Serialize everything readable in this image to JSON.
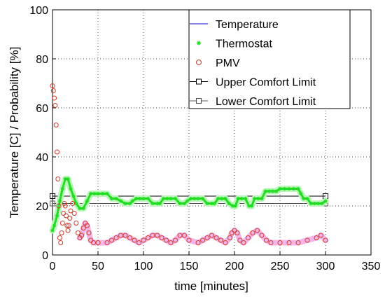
{
  "chart_data": {
    "type": "line",
    "xlabel": "time [minutes]",
    "ylabel": "Temperature [C]  /  Probability [%]",
    "xlim": [
      0,
      350
    ],
    "ylim": [
      0,
      100
    ],
    "xticks": [
      0,
      50,
      100,
      150,
      200,
      250,
      300,
      350
    ],
    "yticks": [
      0,
      20,
      40,
      60,
      80,
      100
    ],
    "grid": true,
    "legend_position": "top-right",
    "colors": {
      "temperature": "#3b3bd6",
      "thermostat": "#22dd22",
      "thermostat_halo": "#b8f7b8",
      "pmv": "#d23a2a",
      "pmv_halo": "#f4b6e8",
      "upper_limit": "#000000",
      "lower_limit": "#555555"
    },
    "series": [
      {
        "name": "Temperature",
        "marker": "line",
        "x": [],
        "y": []
      },
      {
        "name": "Thermostat",
        "marker": "star",
        "x": [
          0,
          2,
          5,
          8,
          11,
          14,
          17,
          20,
          23,
          26,
          30,
          34,
          38,
          42,
          46,
          50,
          55,
          60,
          65,
          70,
          75,
          80,
          85,
          88,
          92,
          96,
          100,
          105,
          110,
          115,
          118,
          122,
          126,
          130,
          135,
          140,
          145,
          148,
          152,
          156,
          160,
          165,
          170,
          175,
          178,
          182,
          186,
          190,
          194,
          198,
          201,
          204,
          208,
          212,
          216,
          219,
          222,
          226,
          230,
          234,
          238,
          242,
          246,
          250,
          255,
          260,
          265,
          270,
          273,
          276,
          280,
          284,
          288,
          292,
          296,
          300
        ],
        "y": [
          10,
          12,
          16,
          22,
          27,
          31,
          31,
          27,
          24,
          21,
          19,
          19,
          22,
          25,
          25,
          25,
          25,
          25,
          23,
          23,
          22,
          21,
          21,
          22,
          23,
          23,
          23,
          23,
          21,
          21,
          21,
          23,
          23,
          23,
          23,
          21,
          21,
          22,
          23,
          23,
          23,
          23,
          21,
          21,
          21,
          23,
          23,
          23,
          21,
          20,
          20,
          23,
          23,
          23,
          20,
          20,
          23,
          23,
          23,
          26,
          26,
          26,
          26,
          27,
          27,
          27,
          27,
          27,
          25,
          23,
          23,
          21,
          21,
          21,
          21,
          22
        ]
      },
      {
        "name": "PMV",
        "marker": "circle",
        "x": [
          0,
          1,
          2,
          3,
          4,
          5,
          6,
          7,
          8,
          9,
          10,
          11,
          12,
          13,
          14,
          15,
          16,
          17,
          18,
          19,
          20,
          22,
          24,
          26,
          28,
          30,
          32,
          34,
          36,
          38,
          40,
          42,
          45,
          50,
          60,
          65,
          70,
          75,
          80,
          85,
          90,
          95,
          100,
          105,
          110,
          115,
          120,
          125,
          130,
          135,
          140,
          145,
          150,
          160,
          165,
          170,
          175,
          180,
          185,
          190,
          195,
          197,
          200,
          203,
          206,
          210,
          215,
          220,
          225,
          230,
          235,
          240,
          250,
          260,
          270,
          280,
          290,
          295,
          300
        ],
        "y": [
          69,
          67,
          64,
          61,
          53,
          42,
          31,
          20,
          7,
          5,
          9,
          13,
          17,
          21,
          20,
          16,
          12,
          10,
          12,
          15,
          18,
          21,
          17,
          13,
          9,
          7,
          8,
          11,
          13,
          12,
          9,
          6,
          5,
          5,
          5,
          6,
          7,
          8,
          8,
          7,
          6,
          5,
          6,
          7,
          8,
          8,
          7,
          6,
          5,
          6,
          8,
          8,
          6,
          5,
          6,
          7,
          8,
          7,
          6,
          5,
          7,
          9,
          10,
          9,
          6,
          5,
          7,
          9,
          10,
          8,
          6,
          5,
          5,
          5,
          5,
          6,
          7,
          8,
          6
        ]
      },
      {
        "name": "Upper Comfort Limit",
        "marker": "square",
        "x": [
          0,
          300
        ],
        "y": [
          24,
          24
        ]
      },
      {
        "name": "Lower Comfort Limit",
        "marker": "square",
        "x": [
          0,
          300
        ],
        "y": [
          21,
          21
        ]
      }
    ]
  }
}
